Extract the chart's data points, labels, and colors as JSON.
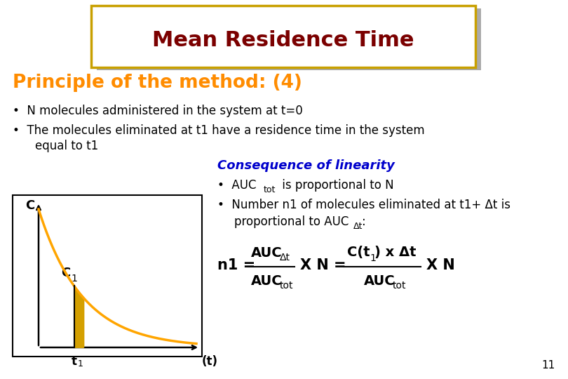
{
  "title": "Mean Residence Time",
  "title_color": "#7B0000",
  "title_bg_color": "#FFFFFF",
  "title_border_color": "#C8A000",
  "title_shadow_color": "#AAAAAA",
  "subtitle": "Principle of the method: (4)",
  "subtitle_color": "#FF8C00",
  "bullet1": "N molecules administered in the system at t=0",
  "bullet2_line1": "The molecules eliminated at t1 have a residence time in the system",
  "bullet2_line2": "equal to t1",
  "consequence_title": "Consequence of linearity",
  "consequence_color": "#0000CC",
  "curve_color": "#FFA500",
  "shade_color": "#D4A000",
  "bg_color": "#FFFFFF",
  "text_color": "#000000",
  "page_number": "11",
  "graph_box_color": "#000000"
}
